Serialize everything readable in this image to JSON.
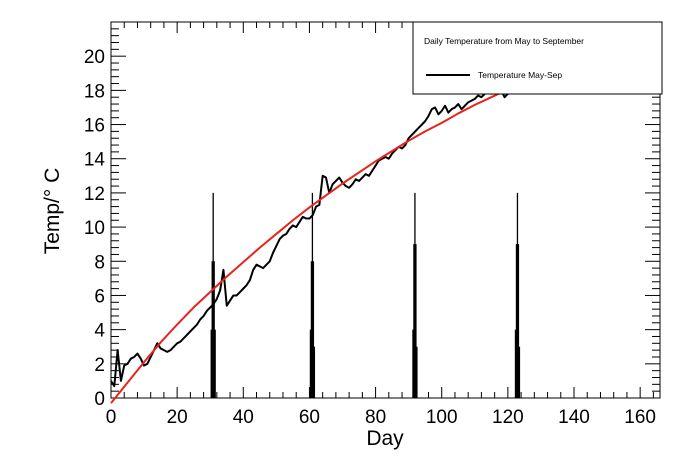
{
  "chart_data": {
    "type": "line",
    "title": "",
    "xlabel": "Day",
    "ylabel": "Temp/° C",
    "xlim": [
      0,
      166
    ],
    "ylim": [
      0,
      22
    ],
    "x_ticks": [
      0,
      20,
      40,
      60,
      80,
      100,
      120,
      140,
      160
    ],
    "y_ticks": [
      0,
      2,
      4,
      6,
      8,
      10,
      12,
      14,
      16,
      18,
      20
    ],
    "grid": false,
    "legend": {
      "placement": "top-right",
      "header": "Daily Temperature from May to September",
      "entries": [
        {
          "label": "Temperature May-Sep",
          "color": "#000000"
        }
      ]
    },
    "series": [
      {
        "name": "Temperature May-Sep",
        "color": "#000000",
        "x": [
          0,
          1,
          2,
          3,
          4,
          5,
          6,
          7,
          8,
          9,
          10,
          11,
          12,
          13,
          14,
          15,
          16,
          17,
          18,
          19,
          20,
          21,
          22,
          23,
          24,
          25,
          26,
          27,
          28,
          29,
          30,
          31,
          32,
          33,
          34,
          35,
          36,
          37,
          38,
          39,
          40,
          41,
          42,
          43,
          44,
          45,
          46,
          47,
          48,
          49,
          50,
          51,
          52,
          53,
          54,
          55,
          56,
          57,
          58,
          59,
          60,
          61,
          62,
          63,
          64,
          65,
          66,
          67,
          68,
          69,
          70,
          71,
          72,
          73,
          74,
          75,
          76,
          77,
          78,
          79,
          80,
          81,
          82,
          83,
          84,
          85,
          86,
          87,
          88,
          89,
          90,
          91,
          92,
          93,
          94,
          95,
          96,
          97,
          98,
          99,
          100,
          101,
          102,
          103,
          104,
          105,
          106,
          107,
          108,
          109,
          110,
          111,
          112,
          113,
          114,
          115,
          116,
          117,
          118,
          119,
          120
        ],
        "values": [
          1.0,
          0.7,
          2.8,
          1.0,
          1.9,
          2.0,
          2.3,
          2.4,
          2.6,
          2.3,
          1.9,
          2.0,
          2.4,
          2.8,
          3.2,
          2.9,
          2.8,
          2.7,
          2.8,
          3.0,
          3.2,
          3.3,
          3.5,
          3.7,
          3.9,
          4.1,
          4.3,
          4.6,
          4.8,
          5.1,
          5.3,
          5.5,
          5.8,
          6.3,
          7.5,
          5.4,
          5.7,
          6.0,
          6.0,
          6.2,
          6.4,
          6.6,
          6.9,
          7.5,
          7.8,
          7.7,
          7.6,
          7.8,
          8.0,
          8.5,
          8.9,
          9.3,
          9.5,
          9.6,
          9.9,
          10.1,
          10.0,
          10.3,
          10.6,
          10.5,
          10.5,
          10.7,
          11.2,
          11.3,
          13.0,
          12.9,
          12.0,
          12.5,
          12.7,
          12.9,
          12.6,
          12.4,
          12.3,
          12.5,
          12.8,
          12.7,
          12.9,
          13.1,
          13.0,
          13.3,
          13.6,
          13.9,
          14.0,
          14.1,
          14.0,
          14.3,
          14.5,
          14.7,
          14.6,
          14.8,
          15.2,
          15.4,
          15.6,
          15.8,
          16.0,
          16.2,
          16.5,
          16.9,
          17.0,
          16.6,
          16.8,
          17.1,
          16.7,
          16.9,
          17.0,
          17.2,
          16.9,
          17.1,
          17.3,
          17.4,
          17.5,
          17.7,
          17.6,
          17.8,
          17.9,
          17.8,
          18.0,
          17.9,
          18.0,
          17.6,
          17.8
        ]
      },
      {
        "name": "",
        "color": "#e8231c",
        "x": [
          0,
          5,
          10,
          15,
          20,
          25,
          30,
          35,
          40,
          45,
          50,
          55,
          60,
          65,
          70,
          75,
          80,
          85,
          90,
          95,
          100,
          105,
          110,
          115,
          120
        ],
        "values": [
          -0.3,
          0.9,
          2.1,
          3.25,
          4.3,
          5.3,
          6.2,
          7.1,
          7.95,
          8.8,
          9.6,
          10.4,
          11.15,
          11.85,
          12.55,
          13.2,
          13.85,
          14.45,
          15.05,
          15.6,
          16.1,
          16.65,
          17.15,
          17.6,
          18.05
        ]
      }
    ],
    "spikes": [
      {
        "x": [
          30.3,
          30.6,
          30.9,
          31.2,
          31.5
        ],
        "values": [
          4,
          8,
          12,
          8,
          4
        ]
      },
      {
        "x": [
          60.3,
          60.6,
          60.9,
          61.2,
          61.5
        ],
        "values": [
          4,
          8,
          12,
          8,
          3
        ]
      },
      {
        "x": [
          91.3,
          91.6,
          91.9,
          92.2,
          92.5
        ],
        "values": [
          4,
          9,
          12,
          9,
          3
        ]
      },
      {
        "x": [
          122.3,
          122.6,
          122.9,
          123.2,
          123.5
        ],
        "values": [
          4,
          9,
          12,
          9,
          3
        ]
      }
    ]
  }
}
